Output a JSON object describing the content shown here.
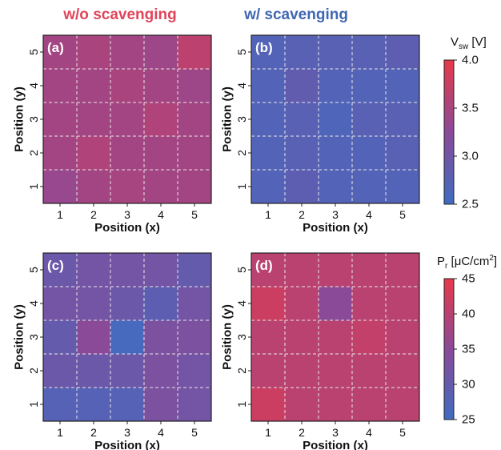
{
  "headers": {
    "left": {
      "text": "w/o scavenging",
      "color": "#e0455a"
    },
    "right": {
      "text": "w/ scavenging",
      "color": "#3f67b3"
    }
  },
  "colorbars": [
    {
      "label_main": "V",
      "label_sub": "sw",
      "label_rest": " [V]",
      "ticks": [
        "4.0",
        "3.5",
        "3.0",
        "2.5"
      ],
      "min": 2.5,
      "max": 4.0
    },
    {
      "label_main": "P",
      "label_sub": "r",
      "label_rest": " [μC/cm",
      "label_sup": "2",
      "label_end": "]",
      "ticks": [
        "45",
        "40",
        "35",
        "30",
        "25"
      ],
      "min": 25,
      "max": 45
    }
  ],
  "colors": {
    "low": "#3f6cc2",
    "mid": "#8a4a98",
    "high": "#e8394a"
  },
  "chart_data": [
    {
      "type": "heatmap",
      "panel": "(a)",
      "xlabel": "Position (x)",
      "ylabel": "Position (y)",
      "x": [
        "1",
        "2",
        "3",
        "4",
        "5"
      ],
      "y": [
        "1",
        "2",
        "3",
        "4",
        "5"
      ],
      "colorbar": 0,
      "values": [
        [
          3.35,
          3.45,
          3.48,
          3.45,
          3.45
        ],
        [
          3.45,
          3.55,
          3.45,
          3.45,
          3.45
        ],
        [
          3.45,
          3.45,
          3.45,
          3.55,
          3.45
        ],
        [
          3.45,
          3.45,
          3.5,
          3.45,
          3.4
        ],
        [
          3.45,
          3.5,
          3.45,
          3.4,
          3.65
        ]
      ]
    },
    {
      "type": "heatmap",
      "panel": "(b)",
      "xlabel": "Position (x)",
      "ylabel": "Position (y)",
      "x": [
        "1",
        "2",
        "3",
        "4",
        "5"
      ],
      "y": [
        "1",
        "2",
        "3",
        "4",
        "5"
      ],
      "colorbar": 0,
      "values": [
        [
          2.7,
          2.8,
          2.7,
          2.7,
          2.7
        ],
        [
          2.7,
          2.75,
          2.7,
          2.7,
          2.75
        ],
        [
          2.7,
          2.75,
          2.65,
          2.75,
          2.75
        ],
        [
          2.7,
          2.85,
          2.7,
          2.7,
          2.7
        ],
        [
          2.7,
          2.75,
          2.75,
          2.75,
          2.8
        ]
      ]
    },
    {
      "type": "heatmap",
      "panel": "(c)",
      "xlabel": "Position (x)",
      "ylabel": "Position (y)",
      "x": [
        "1",
        "2",
        "3",
        "4",
        "5"
      ],
      "y": [
        "1",
        "2",
        "3",
        "4",
        "5"
      ],
      "colorbar": 1,
      "values": [
        [
          28,
          28,
          28,
          33,
          32
        ],
        [
          31,
          31,
          31,
          33,
          32
        ],
        [
          30,
          35,
          26,
          33,
          33
        ],
        [
          32,
          32,
          31,
          29,
          32
        ],
        [
          31,
          32,
          32,
          32,
          30
        ]
      ]
    },
    {
      "type": "heatmap",
      "panel": "(d)",
      "xlabel": "Position (x)",
      "ylabel": "Position (y)",
      "x": [
        "1",
        "2",
        "3",
        "4",
        "5"
      ],
      "y": [
        "1",
        "2",
        "3",
        "4",
        "5"
      ],
      "colorbar": 1,
      "values": [
        [
          42,
          40,
          40,
          40,
          40
        ],
        [
          40,
          40,
          40,
          40,
          40
        ],
        [
          40,
          40,
          40,
          41,
          40
        ],
        [
          42,
          40,
          35,
          40,
          40
        ],
        [
          40,
          40,
          40,
          40,
          40
        ]
      ]
    }
  ]
}
